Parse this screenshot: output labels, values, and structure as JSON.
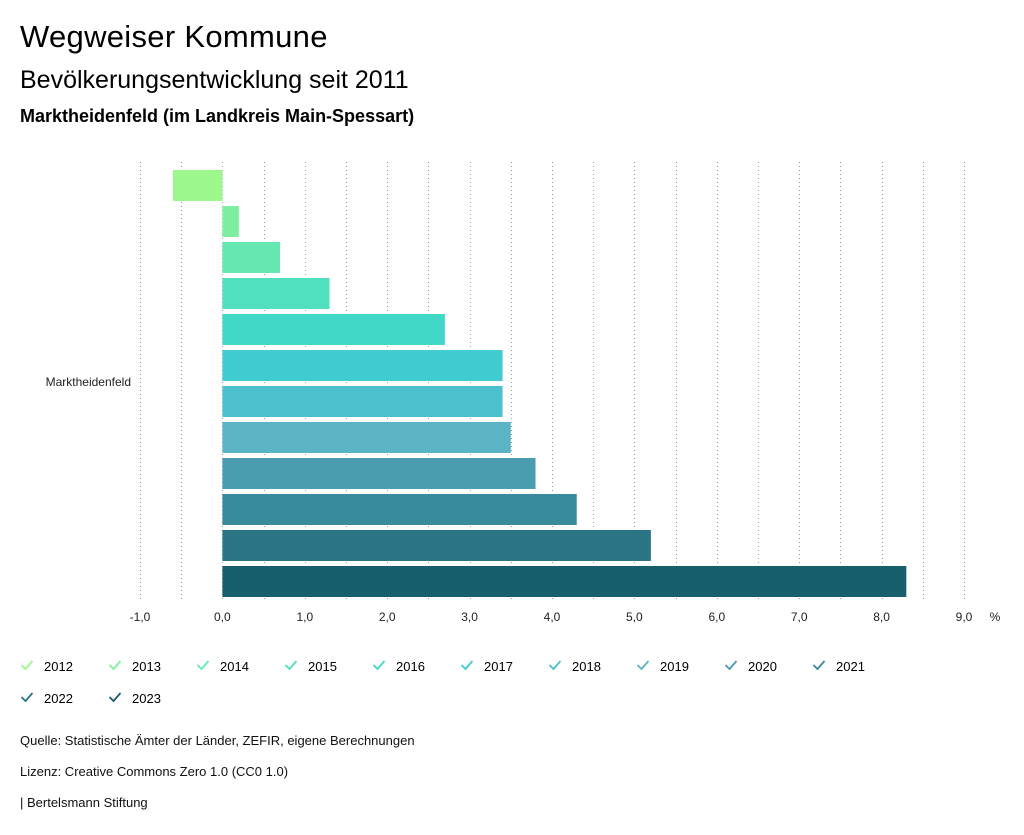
{
  "header": {
    "title": "Wegweiser Kommune",
    "subtitle": "Bevölkerungsentwicklung seit 2011",
    "region": "Marktheidenfeld (im Landkreis Main-Spessart)"
  },
  "chart_data": {
    "type": "bar",
    "orientation": "horizontal",
    "categories": [
      "Marktheidenfeld"
    ],
    "series": [
      {
        "name": "2012",
        "values": [
          -0.6
        ],
        "color": "#9cf78d"
      },
      {
        "name": "2013",
        "values": [
          0.2
        ],
        "color": "#7eefa0"
      },
      {
        "name": "2014",
        "values": [
          0.7
        ],
        "color": "#64e8b0"
      },
      {
        "name": "2015",
        "values": [
          1.3
        ],
        "color": "#50e0bf"
      },
      {
        "name": "2016",
        "values": [
          2.7
        ],
        "color": "#42d8c8"
      },
      {
        "name": "2017",
        "values": [
          3.4
        ],
        "color": "#40ccd0"
      },
      {
        "name": "2018",
        "values": [
          3.4
        ],
        "color": "#4cc0cc"
      },
      {
        "name": "2019",
        "values": [
          3.5
        ],
        "color": "#5ab4c6"
      },
      {
        "name": "2020",
        "values": [
          3.8
        ],
        "color": "#4a9cb0"
      },
      {
        "name": "2021",
        "values": [
          4.3
        ],
        "color": "#3a8a9e"
      },
      {
        "name": "2022",
        "values": [
          5.2
        ],
        "color": "#2a7585"
      },
      {
        "name": "2023",
        "values": [
          8.3
        ],
        "color": "#185f6e"
      }
    ],
    "xlim": [
      -1.0,
      9.0
    ],
    "xticks": [
      "-1,0",
      "0,0",
      "1,0",
      "2,0",
      "3,0",
      "4,0",
      "5,0",
      "6,0",
      "7,0",
      "8,0",
      "9,0"
    ],
    "xtick_values": [
      -1,
      0,
      1,
      2,
      3,
      4,
      5,
      6,
      7,
      8,
      9
    ],
    "unit": "%",
    "grid": "dotted vertical",
    "legend_position": "bottom"
  },
  "legend": {
    "items": [
      {
        "label": "2012",
        "color": "#9cf78d"
      },
      {
        "label": "2013",
        "color": "#7eefa0"
      },
      {
        "label": "2014",
        "color": "#64e8b0"
      },
      {
        "label": "2015",
        "color": "#50e0bf"
      },
      {
        "label": "2016",
        "color": "#42d8c8"
      },
      {
        "label": "2017",
        "color": "#40ccd0"
      },
      {
        "label": "2018",
        "color": "#4cc0cc"
      },
      {
        "label": "2019",
        "color": "#5ab4c6"
      },
      {
        "label": "2020",
        "color": "#4a9cb0"
      },
      {
        "label": "2021",
        "color": "#3a8a9e"
      },
      {
        "label": "2022",
        "color": "#2a7585"
      },
      {
        "label": "2023",
        "color": "#185f6e"
      }
    ]
  },
  "footer": {
    "source": "Quelle: Statistische Ämter der Länder, ZEFIR, eigene Berechnungen",
    "license": "Lizenz: Creative Commons Zero 1.0 (CC0 1.0)",
    "publisher": "| Bertelsmann Stiftung"
  }
}
